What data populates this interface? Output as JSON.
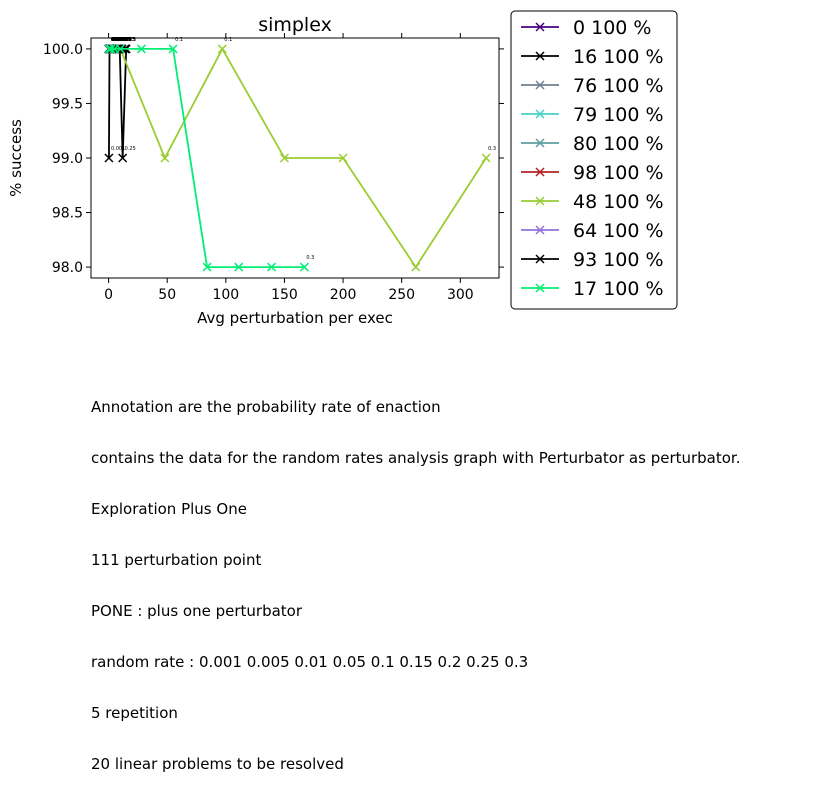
{
  "chart_data": {
    "type": "line",
    "title": "simplex",
    "xlabel": "Avg perturbation per exec",
    "ylabel": "% success",
    "xlim": [
      -15,
      333
    ],
    "ylim": [
      97.9,
      100.1
    ],
    "xticks": [
      0,
      50,
      100,
      150,
      200,
      250,
      300
    ],
    "yticks": [
      98.0,
      98.5,
      99.0,
      99.5,
      100.0
    ],
    "ytick_labels": [
      "98.0",
      "98.5",
      "99.0",
      "99.5",
      "100.0"
    ],
    "legend_position": "outside-right",
    "series": [
      {
        "name": "0 100 %",
        "color": "#4b0082",
        "x": [
          0.2,
          0.6,
          1.2,
          2.5,
          4.0,
          5.5,
          7.0,
          9.0,
          11.0
        ],
        "y": [
          100,
          100,
          100,
          100,
          100,
          100,
          100,
          100,
          100
        ],
        "annotations": [
          "0.001",
          "0.005",
          "0.01",
          "0.05",
          "0.1",
          "0.15",
          "0.2",
          "0.25",
          "0.3"
        ]
      },
      {
        "name": "16 100 %",
        "color": "#000000",
        "x": [
          0.3,
          0.8,
          1.5,
          3.0,
          5.0,
          7.0,
          9.5,
          12.0,
          15.0
        ],
        "y": [
          99,
          100,
          100,
          100,
          100,
          100,
          100,
          99,
          100
        ],
        "annotations": [
          "0.001",
          "0.005",
          "0.01",
          "0.05",
          "0.1",
          "0.15",
          "0.2",
          "0.25",
          "0.3"
        ]
      },
      {
        "name": "76 100 %",
        "color": "#708090",
        "x": [
          0.2,
          0.5,
          1.0,
          2.0,
          3.5,
          5.0,
          6.5,
          8.0,
          10.0
        ],
        "y": [
          100,
          100,
          100,
          100,
          100,
          100,
          100,
          100,
          100
        ],
        "annotations": [
          "0.001",
          "0.005",
          "0.01",
          "0.05",
          "0.1",
          "0.15",
          "0.2",
          "0.25",
          "0.3"
        ]
      },
      {
        "name": "79 100 %",
        "color": "#48d1cc",
        "x": [
          0.2,
          0.5,
          1.0,
          2.0,
          3.5,
          5.0,
          6.5,
          8.0,
          10.0
        ],
        "y": [
          100,
          100,
          100,
          100,
          100,
          100,
          100,
          100,
          100
        ],
        "annotations": [
          "0.001",
          "0.005",
          "0.01",
          "0.05",
          "0.1",
          "0.15",
          "0.2",
          "0.25",
          "0.3"
        ]
      },
      {
        "name": "80 100 %",
        "color": "#5f9ea0",
        "x": [
          0.2,
          0.5,
          1.0,
          2.0,
          3.5,
          5.0,
          6.5,
          8.0,
          10.0
        ],
        "y": [
          100,
          100,
          100,
          100,
          100,
          100,
          100,
          100,
          100
        ],
        "annotations": [
          "0.001",
          "0.005",
          "0.01",
          "0.05",
          "0.1",
          "0.15",
          "0.2",
          "0.25",
          "0.3"
        ]
      },
      {
        "name": "98 100 %",
        "color": "#b22222",
        "x": [
          0.2,
          0.5,
          1.0,
          2.0,
          3.5,
          5.0,
          6.5,
          8.0,
          10.0
        ],
        "y": [
          100,
          100,
          100,
          100,
          100,
          100,
          100,
          100,
          100
        ],
        "annotations": [
          "0.001",
          "0.005",
          "0.01",
          "0.05",
          "0.1",
          "0.15",
          "0.2",
          "0.25",
          "0.3"
        ]
      },
      {
        "name": "48 100 %",
        "color": "#9acd32",
        "x": [
          0.5,
          2.0,
          5.0,
          10.0,
          48.0,
          97.0,
          150.0,
          200.0,
          262.0,
          322.0
        ],
        "y": [
          100,
          100,
          100,
          100,
          99,
          100,
          99,
          99,
          98,
          99
        ],
        "annotations": [
          "",
          "",
          "",
          "",
          "",
          "0.1",
          "",
          "",
          "",
          "0.3"
        ]
      },
      {
        "name": "64 100 %",
        "color": "#9370db",
        "x": [
          0.2,
          0.5,
          1.0,
          2.0,
          3.5,
          5.0,
          6.5,
          8.0,
          10.0
        ],
        "y": [
          100,
          100,
          100,
          100,
          100,
          100,
          100,
          100,
          100
        ],
        "annotations": [
          "0.001",
          "0.005",
          "0.01",
          "0.05",
          "0.1",
          "0.15",
          "0.2",
          "0.25",
          "0.3"
        ]
      },
      {
        "name": "93 100 %",
        "color": "#000000",
        "x": [
          0.3,
          0.8,
          1.5,
          3.0,
          5.0,
          7.0,
          9.0,
          11.5,
          14.0
        ],
        "y": [
          100,
          100,
          100,
          100,
          100,
          100,
          100,
          100,
          100
        ],
        "annotations": [
          "0.001",
          "0.005",
          "0.01",
          "0.05",
          "0.1",
          "0.15",
          "0.2",
          "0.25",
          "0.3"
        ]
      },
      {
        "name": "17 100 %",
        "color": "#00ee76",
        "x": [
          0.5,
          2.0,
          5.0,
          10.0,
          28.0,
          55.0,
          84.0,
          111.0,
          139.0,
          167.0
        ],
        "y": [
          100,
          100,
          100,
          100,
          100,
          100,
          98,
          98,
          98,
          98
        ],
        "annotations": [
          "",
          "",
          "",
          "",
          "",
          "0.1",
          "",
          "",
          "",
          "0.3"
        ]
      }
    ]
  },
  "caption_lines": [
    "Annotation are the probability rate of enaction",
    "contains the data for the random rates analysis graph with Perturbator as perturbator.",
    "Exploration Plus One",
    "111 perturbation point",
    "PONE : plus one perturbator",
    "random rate : 0.001 0.005 0.01 0.05 0.1 0.15 0.2 0.25 0.3",
    "5 repetition",
    "20 linear problems to be resolved"
  ]
}
